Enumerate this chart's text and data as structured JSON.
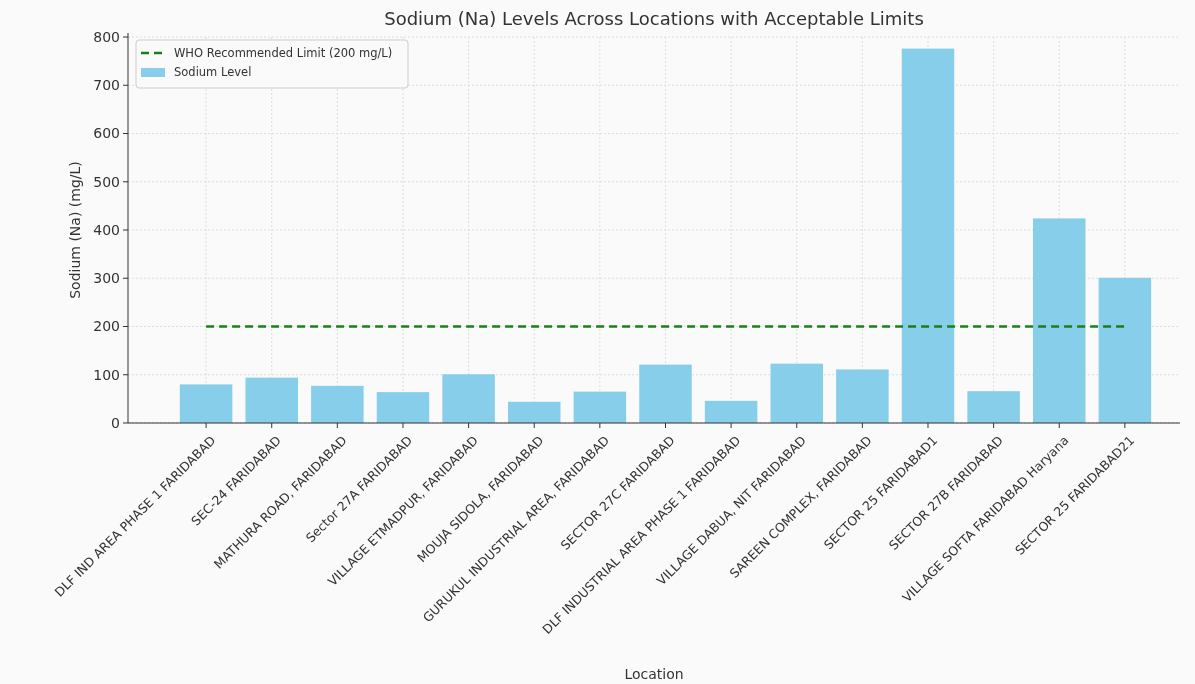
{
  "chart_data": {
    "type": "bar",
    "title": "Sodium (Na) Levels Across Locations with Acceptable Limits",
    "xlabel": "Location",
    "ylabel": "Sodium (Na) (mg/L)",
    "categories": [
      "DLF IND AREA PHASE 1 FARIDABAD",
      "SEC-24 FARIDABAD",
      "MATHURA ROAD, FARIDABAD",
      "Sector 27A FARIDABAD",
      "VILLAGE ETMADPUR, FARIDABAD",
      "MOUJA SIDOLA, FARIDABAD",
      "GURUKUL INDUSTRIAL AREA, FARIDABAD",
      "SECTOR 27C FARIDABAD",
      "DLF INDUSTRIAL AREA PHASE 1 FARIDABAD",
      "VILLAGE DABUA, NIT FARIDABAD",
      "SAREEN COMPLEX, FARIDABAD",
      "SECTOR 25 FARIDABAD1",
      "SECTOR 27B FARIDABAD",
      "VILLAGE SOFTA FARIDABAD Haryana",
      "SECTOR 25 FARIDABAD21"
    ],
    "series": [
      {
        "name": "WHO Recommended Limit (200 mg/L)",
        "type": "line",
        "color": "#1a7f1a",
        "line_style": "dashed",
        "values": [
          200,
          200,
          200,
          200,
          200,
          200,
          200,
          200,
          200,
          200,
          200,
          200,
          200,
          200,
          200
        ]
      },
      {
        "name": "Sodium Level",
        "color": "#87ceeb",
        "values": [
          80,
          94,
          77,
          64,
          101,
          44,
          65,
          121,
          46,
          123,
          111,
          776,
          66,
          424,
          301
        ]
      }
    ],
    "ylim": [
      0,
      800
    ],
    "yticks": [
      0,
      100,
      200,
      300,
      400,
      500,
      600,
      700,
      800
    ],
    "grid": true,
    "legend": "top left"
  }
}
